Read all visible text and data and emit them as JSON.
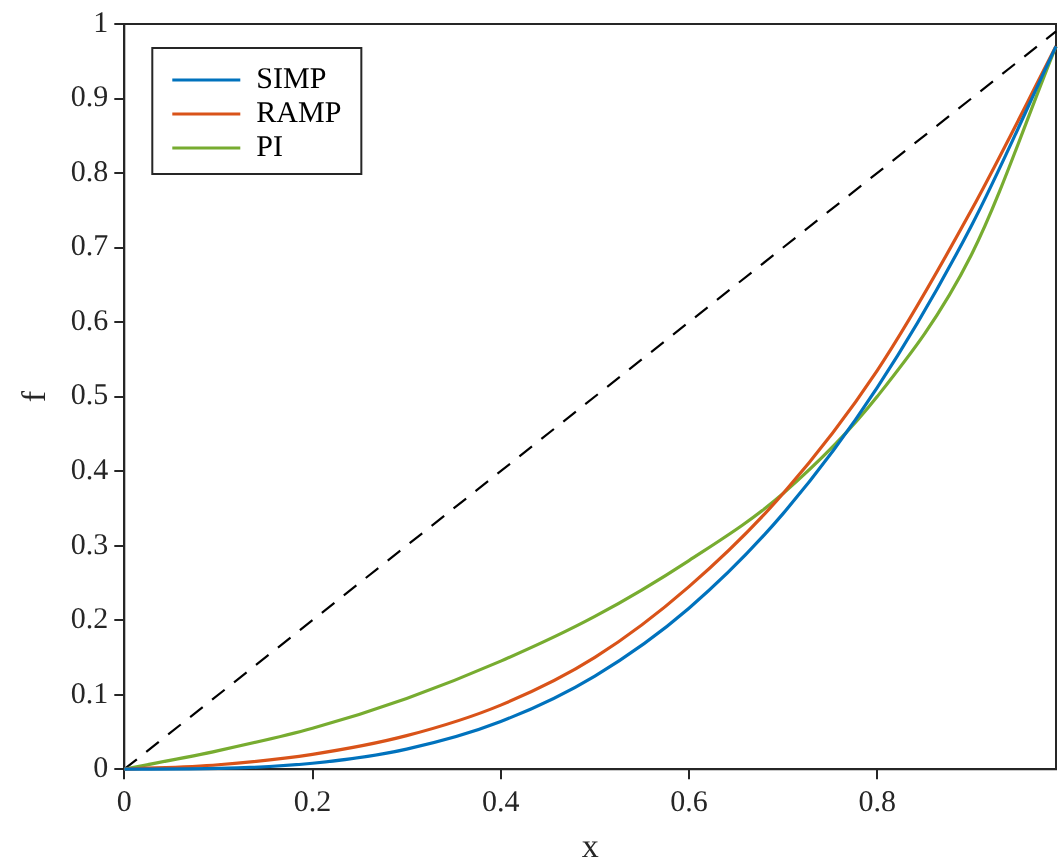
{
  "chart_data": {
    "type": "line",
    "xlabel": "x",
    "ylabel": "f",
    "xlim": [
      0,
      0.99
    ],
    "ylim": [
      0,
      1
    ],
    "xticks": [
      0,
      0.2,
      0.4,
      0.6,
      0.8
    ],
    "yticks": [
      0,
      0.1,
      0.2,
      0.3,
      0.4,
      0.5,
      0.6,
      0.7,
      0.8,
      0.9,
      1
    ],
    "legend": "top left",
    "grid": false,
    "marker": "none",
    "series": [
      {
        "name": "SIMP",
        "color": "#0072bd",
        "x": [
          0,
          0.1,
          0.2,
          0.3,
          0.4,
          0.5,
          0.6,
          0.7,
          0.8,
          0.9,
          0.99
        ],
        "values": [
          0,
          0.001,
          0.008,
          0.027,
          0.064,
          0.125,
          0.216,
          0.343,
          0.512,
          0.729,
          0.97
        ]
      },
      {
        "name": "RAMP",
        "color": "#d95319",
        "x": [
          0,
          0.1,
          0.2,
          0.3,
          0.4,
          0.5,
          0.6,
          0.7,
          0.8,
          0.9,
          0.99
        ],
        "values": [
          0,
          0.006,
          0.02,
          0.045,
          0.086,
          0.15,
          0.245,
          0.37,
          0.535,
          0.75,
          0.97
        ]
      },
      {
        "name": "PI",
        "color": "#77ac30",
        "x": [
          0,
          0.1,
          0.2,
          0.3,
          0.4,
          0.5,
          0.6,
          0.7,
          0.8,
          0.9,
          0.99
        ],
        "values": [
          0,
          0.025,
          0.055,
          0.095,
          0.145,
          0.205,
          0.28,
          0.37,
          0.5,
          0.69,
          0.97
        ]
      },
      {
        "color": "#000000",
        "line_style": "dashed",
        "x": [
          0,
          0.99
        ],
        "values": [
          0,
          0.99
        ]
      }
    ]
  }
}
